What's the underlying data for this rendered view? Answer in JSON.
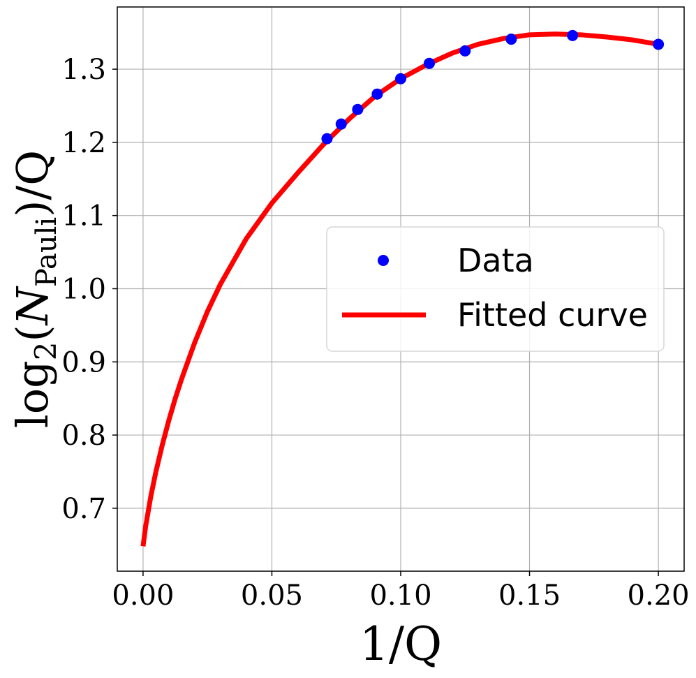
{
  "chart_data": {
    "type": "scatter",
    "title": "",
    "xlabel": "1/Q",
    "ylabel": {
      "prefix": "log",
      "log_base": "2",
      "open": "(",
      "variable": "N",
      "subscript": "Pauli",
      "close": ")/Q"
    },
    "xlim": [
      -0.01,
      0.21
    ],
    "ylim": [
      0.614,
      1.385
    ],
    "grid": true,
    "x_ticks": [
      0.0,
      0.05,
      0.1,
      0.15,
      0.2
    ],
    "x_tick_labels": [
      "0.00",
      "0.05",
      "0.10",
      "0.15",
      "0.20"
    ],
    "y_ticks": [
      0.7,
      0.8,
      0.9,
      1.0,
      1.1,
      1.2,
      1.3
    ],
    "y_tick_labels": [
      "0.7",
      "0.8",
      "0.9",
      "1.0",
      "1.1",
      "1.2",
      "1.3"
    ],
    "legend_position": "center-right",
    "series": [
      {
        "name": "Data",
        "kind": "scatter",
        "color": "#0000ff",
        "x": [
          0.0714,
          0.0769,
          0.0833,
          0.0909,
          0.1,
          0.1111,
          0.125,
          0.1429,
          0.1667,
          0.2
        ],
        "y": [
          1.205,
          1.225,
          1.245,
          1.266,
          1.287,
          1.308,
          1.325,
          1.341,
          1.346,
          1.334
        ]
      },
      {
        "name": "Fitted curve",
        "kind": "line",
        "color": "#ff0000",
        "x": [
          0.0,
          0.001,
          0.003,
          0.005,
          0.0075,
          0.01,
          0.0125,
          0.015,
          0.02,
          0.025,
          0.03,
          0.04,
          0.05,
          0.06,
          0.07,
          0.08,
          0.09,
          0.1,
          0.11,
          0.12,
          0.13,
          0.14,
          0.15,
          0.16,
          0.17,
          0.18,
          0.19,
          0.2
        ],
        "y": [
          0.648,
          0.675,
          0.716,
          0.75,
          0.787,
          0.82,
          0.85,
          0.877,
          0.926,
          0.969,
          1.006,
          1.068,
          1.117,
          1.158,
          1.197,
          1.232,
          1.263,
          1.287,
          1.306,
          1.322,
          1.334,
          1.342,
          1.347,
          1.348,
          1.347,
          1.344,
          1.34,
          1.334
        ]
      }
    ]
  }
}
